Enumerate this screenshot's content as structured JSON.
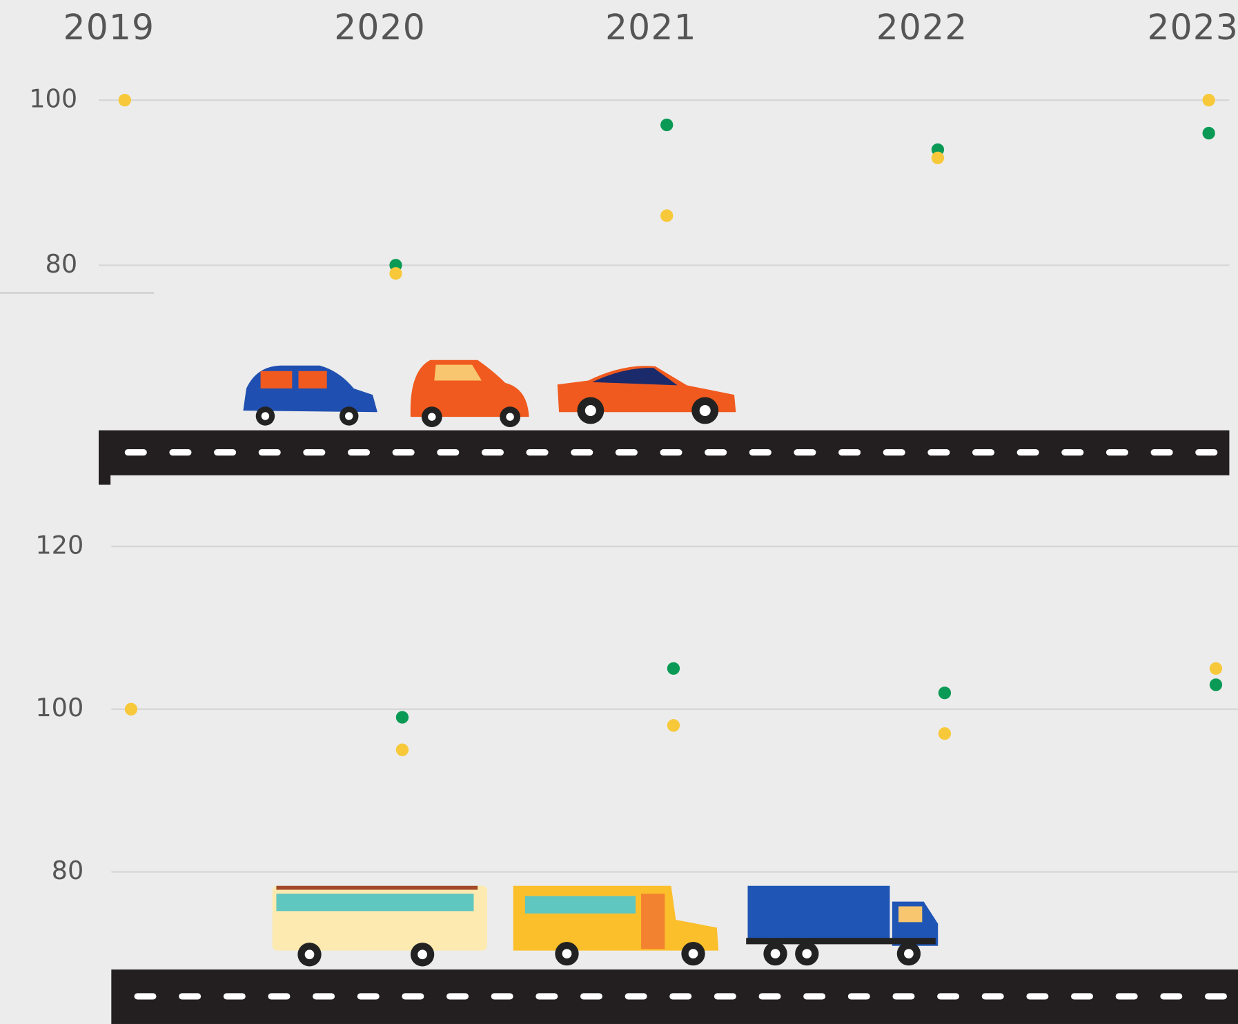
{
  "chart_data": [
    {
      "type": "scatter",
      "categories": [
        "2019",
        "2020",
        "2021",
        "2022",
        "2023"
      ],
      "series": [
        {
          "color": "#0a9a55",
          "values": [
            null,
            80,
            97,
            94,
            96
          ]
        },
        {
          "color": "#f7c93a",
          "values": [
            100,
            79,
            86,
            93,
            100
          ]
        }
      ],
      "ylim": [
        60,
        104
      ],
      "yticks": [
        80,
        100
      ],
      "grid": true
    },
    {
      "type": "scatter",
      "series": [
        {
          "color": "#0a9a55",
          "values": [
            null,
            99,
            105,
            102,
            103
          ]
        },
        {
          "color": "#f7c93a",
          "values": [
            100,
            95,
            98,
            97,
            105
          ]
        }
      ],
      "ylim": [
        68,
        127
      ],
      "yticks": [
        80,
        100,
        120
      ],
      "grid": true
    }
  ]
}
